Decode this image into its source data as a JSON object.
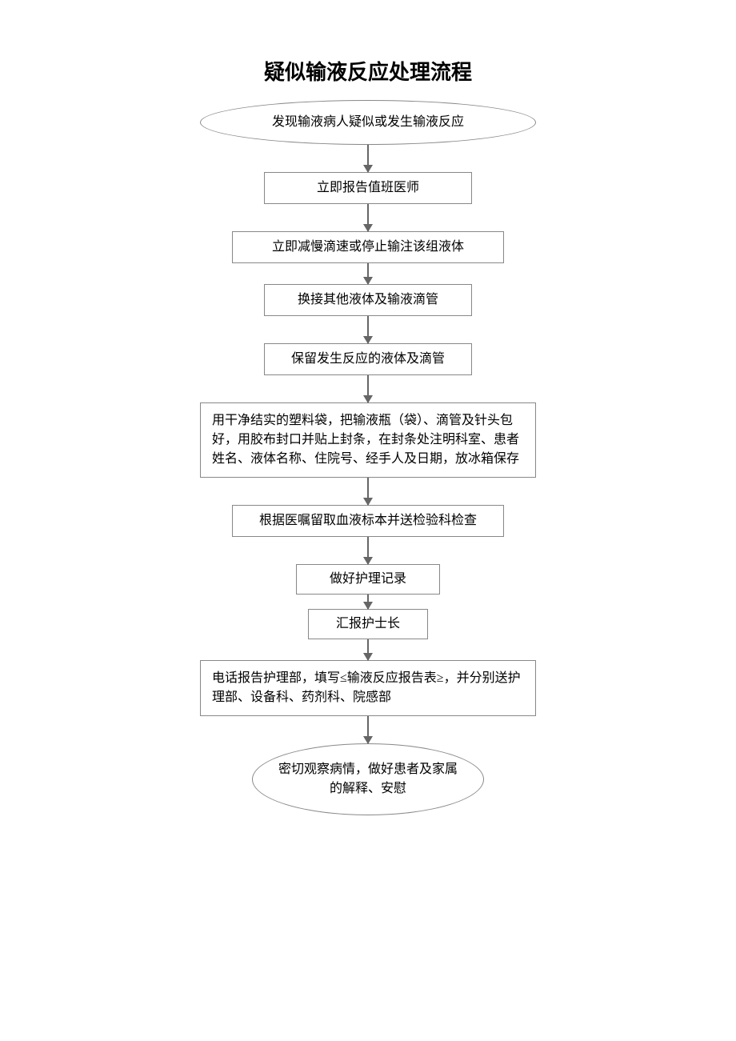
{
  "title": "疑似输液反应处理流程",
  "nodes": {
    "start": "发现输液病人疑似或发生输液反应",
    "step1": "立即报告值班医师",
    "step2": "立即减慢滴速或停止输注该组液体",
    "step3": "换接其他液体及输液滴管",
    "step4": "保留发生反应的液体及滴管",
    "step5": "用干净结实的塑料袋，把输液瓶（袋）、滴管及针头包好，用胶布封口并贴上封条，在封条处注明科室、患者姓名、液体名称、住院号、经手人及日期，放冰箱保存",
    "step6": "根据医嘱留取血液标本并送检验科检查",
    "step7": "做好护理记录",
    "step8": "汇报护士长",
    "step9": "电话报告护理部，填写≤输液反应报告表≥，并分别送护理部、设备科、药剂科、院感部",
    "end": "密切观察病情，做好患者及家属的解释、安慰"
  },
  "style": {
    "border_color": "#888888",
    "arrow_color": "#666666",
    "background": "#ffffff",
    "title_fontsize": 26,
    "node_fontsize": 16
  }
}
